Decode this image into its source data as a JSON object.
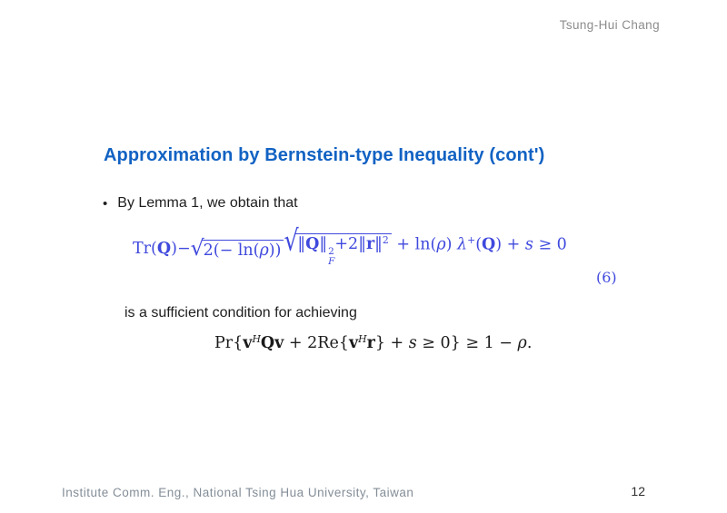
{
  "page": {
    "author": "Tsung-Hui Chang",
    "title": "Approximation by Bernstein-type Inequality (cont')",
    "footer_left": "Institute Comm. Eng., National Tsing Hua University, Taiwan",
    "page_number": "12"
  },
  "colors": {
    "title_blue": "#1262c3",
    "equation_blue": "#3f49dd",
    "header_gray": "#8c8c8c",
    "footer_gray": "#848e98",
    "body_text": "#1e1e1e"
  },
  "content": {
    "bullet_marker": "•",
    "bullet_text": "By Lemma 1, we obtain that",
    "mid_text": "is a sufficient condition for achieving"
  },
  "eq6": {
    "label": "(6)",
    "tr": "Tr(",
    "Q1": "Q",
    "p1": ")",
    "minus": "−",
    "rsign1": "√",
    "rad1a": "2(− ln(",
    "rad1rho": "ρ",
    "rad1b": "))",
    "rsign2": "√",
    "n1": "‖",
    "Q2": "Q",
    "n2": "‖",
    "sup1": "2",
    "subF": "F",
    "plus2": "+2",
    "n3": "‖",
    "r1": "r",
    "n4": "‖",
    "sup2": "2",
    "t2": " + ln(",
    "rho2": "ρ",
    "t3": ") ",
    "lambda": "λ",
    "lamsup": "+",
    "t4": "(",
    "Q3": "Q",
    "t5": ") + ",
    "s": "s",
    "t6": " ≥ 0"
  },
  "eqprob": {
    "t1": "Pr{",
    "v1": "v",
    "h1": "H",
    "Q": "Q",
    "v2": "v",
    "t2": " + 2Re{",
    "v3": "v",
    "h2": "H",
    "r": "r",
    "t3": "} + ",
    "s": "s",
    "t4": " ≥ 0} ≥ 1 − ",
    "rho": "ρ",
    "dot": "."
  }
}
